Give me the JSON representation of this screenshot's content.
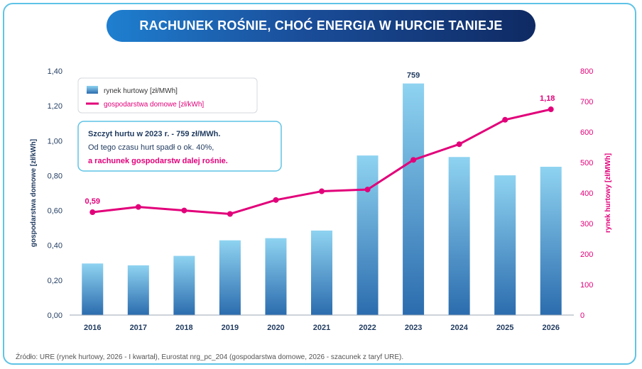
{
  "title": "RACHUNEK ROŚNIE, CHOĆ ENERGIA W HURCIE TANIEJE",
  "source": "Źródło: URE (rynek hurtowy, 2026 - I kwartał), Eurostat nrg_pc_204 (gospodarstwa domowe, 2026 - szacunek z taryf URE).",
  "colors": {
    "bar_top": "#8fd3f1",
    "bar_bottom": "#2b6cae",
    "line": "#e2007a",
    "left_axis_text": "#1f3a5f",
    "right_axis_text": "#e2007a",
    "annotation_border": "#5fc3e6",
    "annotation_bold": "#1f3a5f",
    "annotation_highlight": "#e2007a"
  },
  "chart_data": {
    "type": "bar",
    "categories": [
      "2016",
      "2017",
      "2018",
      "2019",
      "2020",
      "2021",
      "2022",
      "2023",
      "2024",
      "2025",
      "2026"
    ],
    "series": [
      {
        "name": "rynek hurtowy [zł/MWh]",
        "type": "bar",
        "axis": "right",
        "values": [
          169,
          163,
          194,
          245,
          252,
          277,
          523,
          759,
          518,
          458,
          486
        ]
      },
      {
        "name": "gospodarstwa domowe [zł/kWh]",
        "type": "line",
        "axis": "left",
        "values": [
          0.59,
          0.62,
          0.6,
          0.58,
          0.66,
          0.71,
          0.72,
          0.89,
          0.98,
          1.12,
          1.18
        ]
      }
    ],
    "ylabel_left": "gospodarstwa domowe [zł/kWh]",
    "ylabel_right": "rynek hurtowy [zł/MWh]",
    "ylim_left": [
      0,
      1.4
    ],
    "ylim_right": [
      0,
      800
    ],
    "yticks_left": [
      "0,00",
      "0,20",
      "0,40",
      "0,60",
      "0,80",
      "1,00",
      "1,20",
      "1,40"
    ],
    "yticks_right": [
      "0",
      "100",
      "200",
      "300",
      "400",
      "500",
      "600",
      "700",
      "800"
    ],
    "data_labels": {
      "bar_2023": "759",
      "line_2016": "0,59",
      "line_2026": "1,18"
    },
    "legend": {
      "placement": "top-left",
      "bar_label": "rynek hurtowy [zł/MWh]",
      "line_label": "gospodarstwa domowe [zł/kWh]"
    },
    "annotation": {
      "line1": "Szczyt hurtu w 2023 r. - 759 zł/MWh.",
      "line2": "Od tego czasu hurt spadł o ok. 40%,",
      "line3": "a rachunek gospodarstw dalej rośnie."
    },
    "grid": false
  }
}
